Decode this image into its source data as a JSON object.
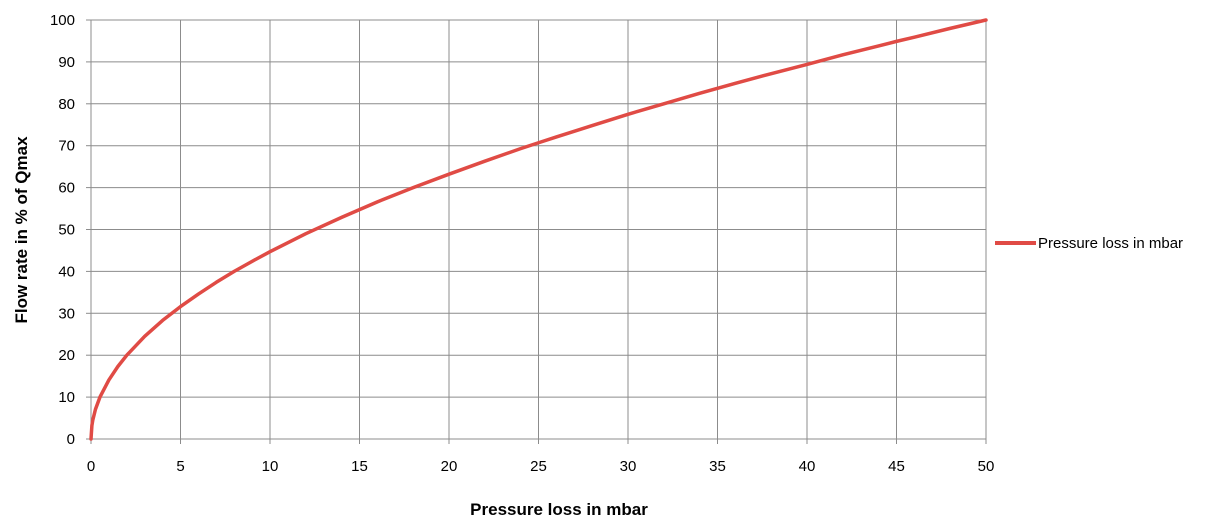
{
  "chart_data": {
    "type": "line",
    "title": "",
    "xlabel": "Pressure loss in mbar",
    "ylabel": "Flow rate in % of Qmax",
    "xlim": [
      0,
      50
    ],
    "ylim": [
      0,
      100
    ],
    "x_ticks": [
      "0",
      "5",
      "10",
      "15",
      "20",
      "25",
      "30",
      "35",
      "40",
      "45",
      "50"
    ],
    "y_ticks": [
      "0",
      "10",
      "20",
      "30",
      "40",
      "50",
      "60",
      "70",
      "80",
      "90",
      "100"
    ],
    "grid": true,
    "legend_position": "right",
    "series": [
      {
        "name": "Pressure loss in mbar",
        "color": "#e04b45",
        "x": [
          0,
          0.05,
          0.1,
          0.25,
          0.5,
          1,
          1.5,
          2,
          3,
          4,
          5,
          6,
          7,
          8,
          9,
          10,
          12,
          14,
          16,
          18,
          20,
          22,
          24,
          25,
          26,
          28,
          30,
          32,
          34,
          35,
          36,
          38,
          40,
          42,
          44,
          45,
          46,
          48,
          50
        ],
        "y": [
          0,
          3.2,
          4.5,
          7.1,
          10.0,
          14.1,
          17.3,
          20.0,
          24.5,
          28.3,
          31.6,
          34.6,
          37.4,
          40.0,
          42.4,
          44.7,
          49.0,
          52.9,
          56.6,
          60.0,
          63.2,
          66.3,
          69.3,
          70.7,
          72.1,
          74.8,
          77.5,
          80.0,
          82.5,
          83.7,
          84.9,
          87.2,
          89.4,
          91.7,
          93.8,
          94.9,
          95.9,
          98.0,
          100.0
        ]
      }
    ]
  }
}
